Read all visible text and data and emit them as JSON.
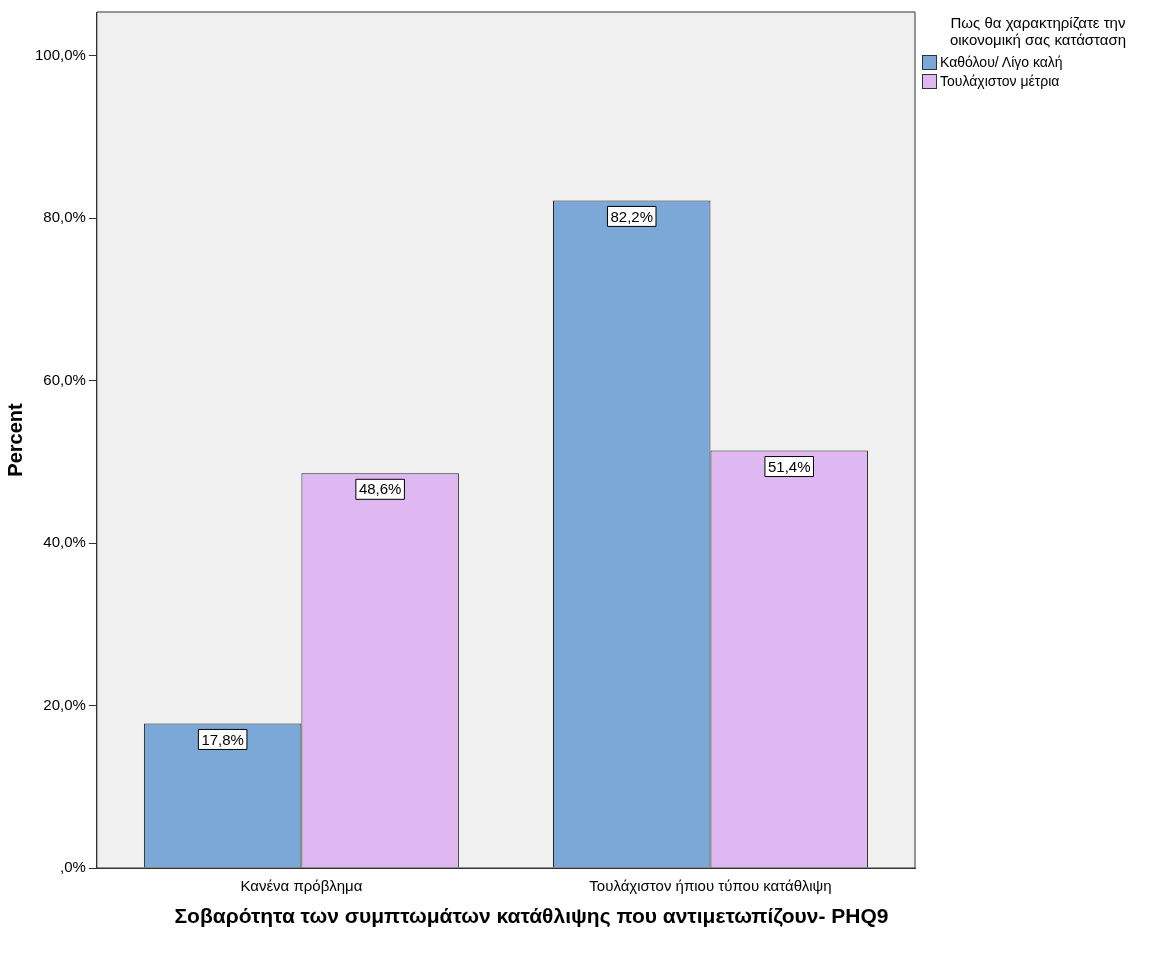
{
  "chart_data": {
    "type": "bar",
    "xlabel": "Σοβαρότητα των συμπτωμάτων κατάθλιψης που αντιμετωπίζουν- PHQ9",
    "ylabel": "Percent",
    "legend_title": "Πως θα χαρακτηρίζατε την οικονομική σας κατάσταση",
    "categories": [
      "Κανένα πρόβλημα",
      "Τουλάχιστον ήπιου τύπου κατάθλιψη"
    ],
    "series": [
      {
        "name": "Καθόλου/ Λίγο καλή",
        "color": "#7ba8d6",
        "values": [
          17.8,
          82.2
        ],
        "value_labels": [
          "17,8%",
          "82,2%"
        ]
      },
      {
        "name": "Τουλάχιστον μέτρια",
        "color": "#dfb8f2",
        "values": [
          48.6,
          51.4
        ],
        "value_labels": [
          "48,6%",
          "51,4%"
        ]
      }
    ],
    "ylim": [
      0,
      105.4
    ],
    "yticks": [
      {
        "value": 0,
        "label": ",0%"
      },
      {
        "value": 20,
        "label": "20,0%"
      },
      {
        "value": 40,
        "label": "40,0%"
      },
      {
        "value": 60,
        "label": "60,0%"
      },
      {
        "value": 80,
        "label": "80,0%"
      },
      {
        "value": 100,
        "label": "100,0%"
      }
    ],
    "grid": false,
    "legend": "right"
  }
}
